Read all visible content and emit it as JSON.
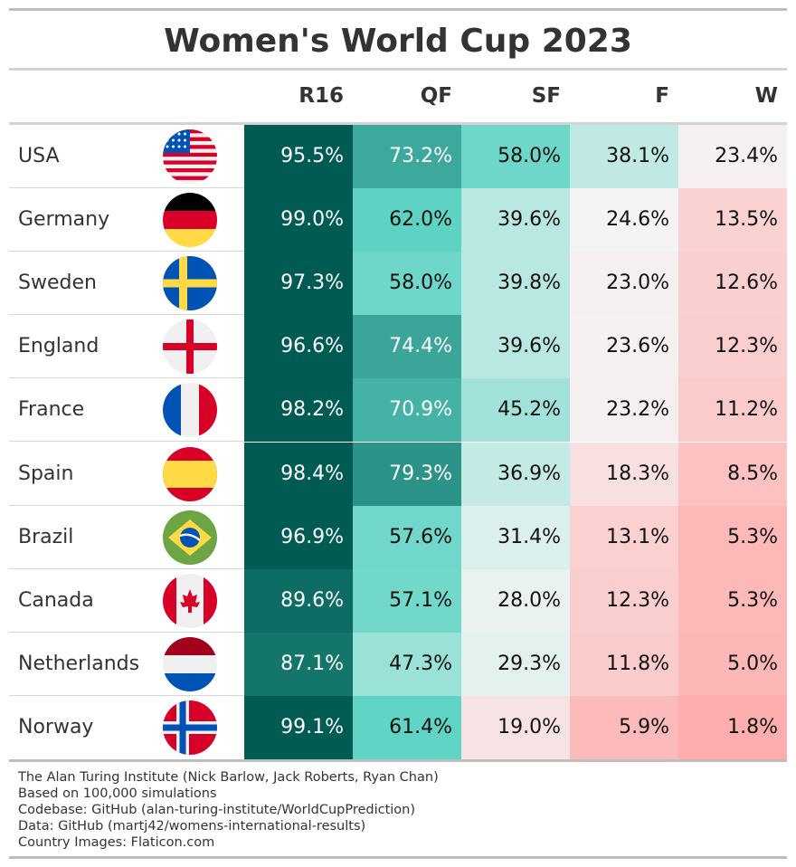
{
  "chart_data": {
    "type": "table",
    "title": "Women's World Cup 2023",
    "columns": [
      "R16",
      "QF",
      "SF",
      "F",
      "W"
    ],
    "rows": [
      {
        "country": "USA",
        "flag": "usa-flag",
        "values": [
          "95.5%",
          "73.2%",
          "58.0%",
          "38.1%",
          "23.4%"
        ],
        "numeric": [
          95.5,
          73.2,
          58.0,
          38.1,
          23.4
        ]
      },
      {
        "country": "Germany",
        "flag": "germany-flag",
        "values": [
          "99.0%",
          "62.0%",
          "39.6%",
          "24.6%",
          "13.5%"
        ],
        "numeric": [
          99.0,
          62.0,
          39.6,
          24.6,
          13.5
        ]
      },
      {
        "country": "Sweden",
        "flag": "sweden-flag",
        "values": [
          "97.3%",
          "58.0%",
          "39.8%",
          "23.0%",
          "12.6%"
        ],
        "numeric": [
          97.3,
          58.0,
          39.8,
          23.0,
          12.6
        ]
      },
      {
        "country": "England",
        "flag": "england-flag",
        "values": [
          "96.6%",
          "74.4%",
          "39.6%",
          "23.6%",
          "12.3%"
        ],
        "numeric": [
          96.6,
          74.4,
          39.6,
          23.6,
          12.3
        ]
      },
      {
        "country": "France",
        "flag": "france-flag",
        "values": [
          "98.2%",
          "70.9%",
          "45.2%",
          "23.2%",
          "11.2%"
        ],
        "numeric": [
          98.2,
          70.9,
          45.2,
          23.2,
          11.2
        ]
      },
      {
        "country": "Spain",
        "flag": "spain-flag",
        "values": [
          "98.4%",
          "79.3%",
          "36.9%",
          "18.3%",
          "8.5%"
        ],
        "numeric": [
          98.4,
          79.3,
          36.9,
          18.3,
          8.5
        ]
      },
      {
        "country": "Brazil",
        "flag": "brazil-flag",
        "values": [
          "96.9%",
          "57.6%",
          "31.4%",
          "13.1%",
          "5.3%"
        ],
        "numeric": [
          96.9,
          57.6,
          31.4,
          13.1,
          5.3
        ]
      },
      {
        "country": "Canada",
        "flag": "canada-flag",
        "values": [
          "89.6%",
          "57.1%",
          "28.0%",
          "12.3%",
          "5.3%"
        ],
        "numeric": [
          89.6,
          57.1,
          28.0,
          12.3,
          5.3
        ]
      },
      {
        "country": "Netherlands",
        "flag": "netherlands-flag",
        "values": [
          "87.1%",
          "47.3%",
          "29.3%",
          "11.8%",
          "5.0%"
        ],
        "numeric": [
          87.1,
          47.3,
          29.3,
          11.8,
          5.0
        ]
      },
      {
        "country": "Norway",
        "flag": "norway-flag",
        "values": [
          "99.1%",
          "61.4%",
          "19.0%",
          "5.9%",
          "1.8%"
        ],
        "numeric": [
          99.1,
          61.4,
          19.0,
          5.9,
          1.8
        ]
      }
    ],
    "color_scale": {
      "high": "#005c53",
      "mid": "#f5f5f5",
      "low": "#ffa8a8"
    }
  },
  "footer": [
    "The Alan Turing Institute (Nick Barlow, Jack Roberts, Ryan Chan)",
    "Based on 100,000 simulations",
    "Codebase: GitHub (alan-turing-institute/WorldCupPrediction)",
    "Data: GitHub (martj42/womens-international-results)",
    "Country Images: Flaticon.com"
  ]
}
